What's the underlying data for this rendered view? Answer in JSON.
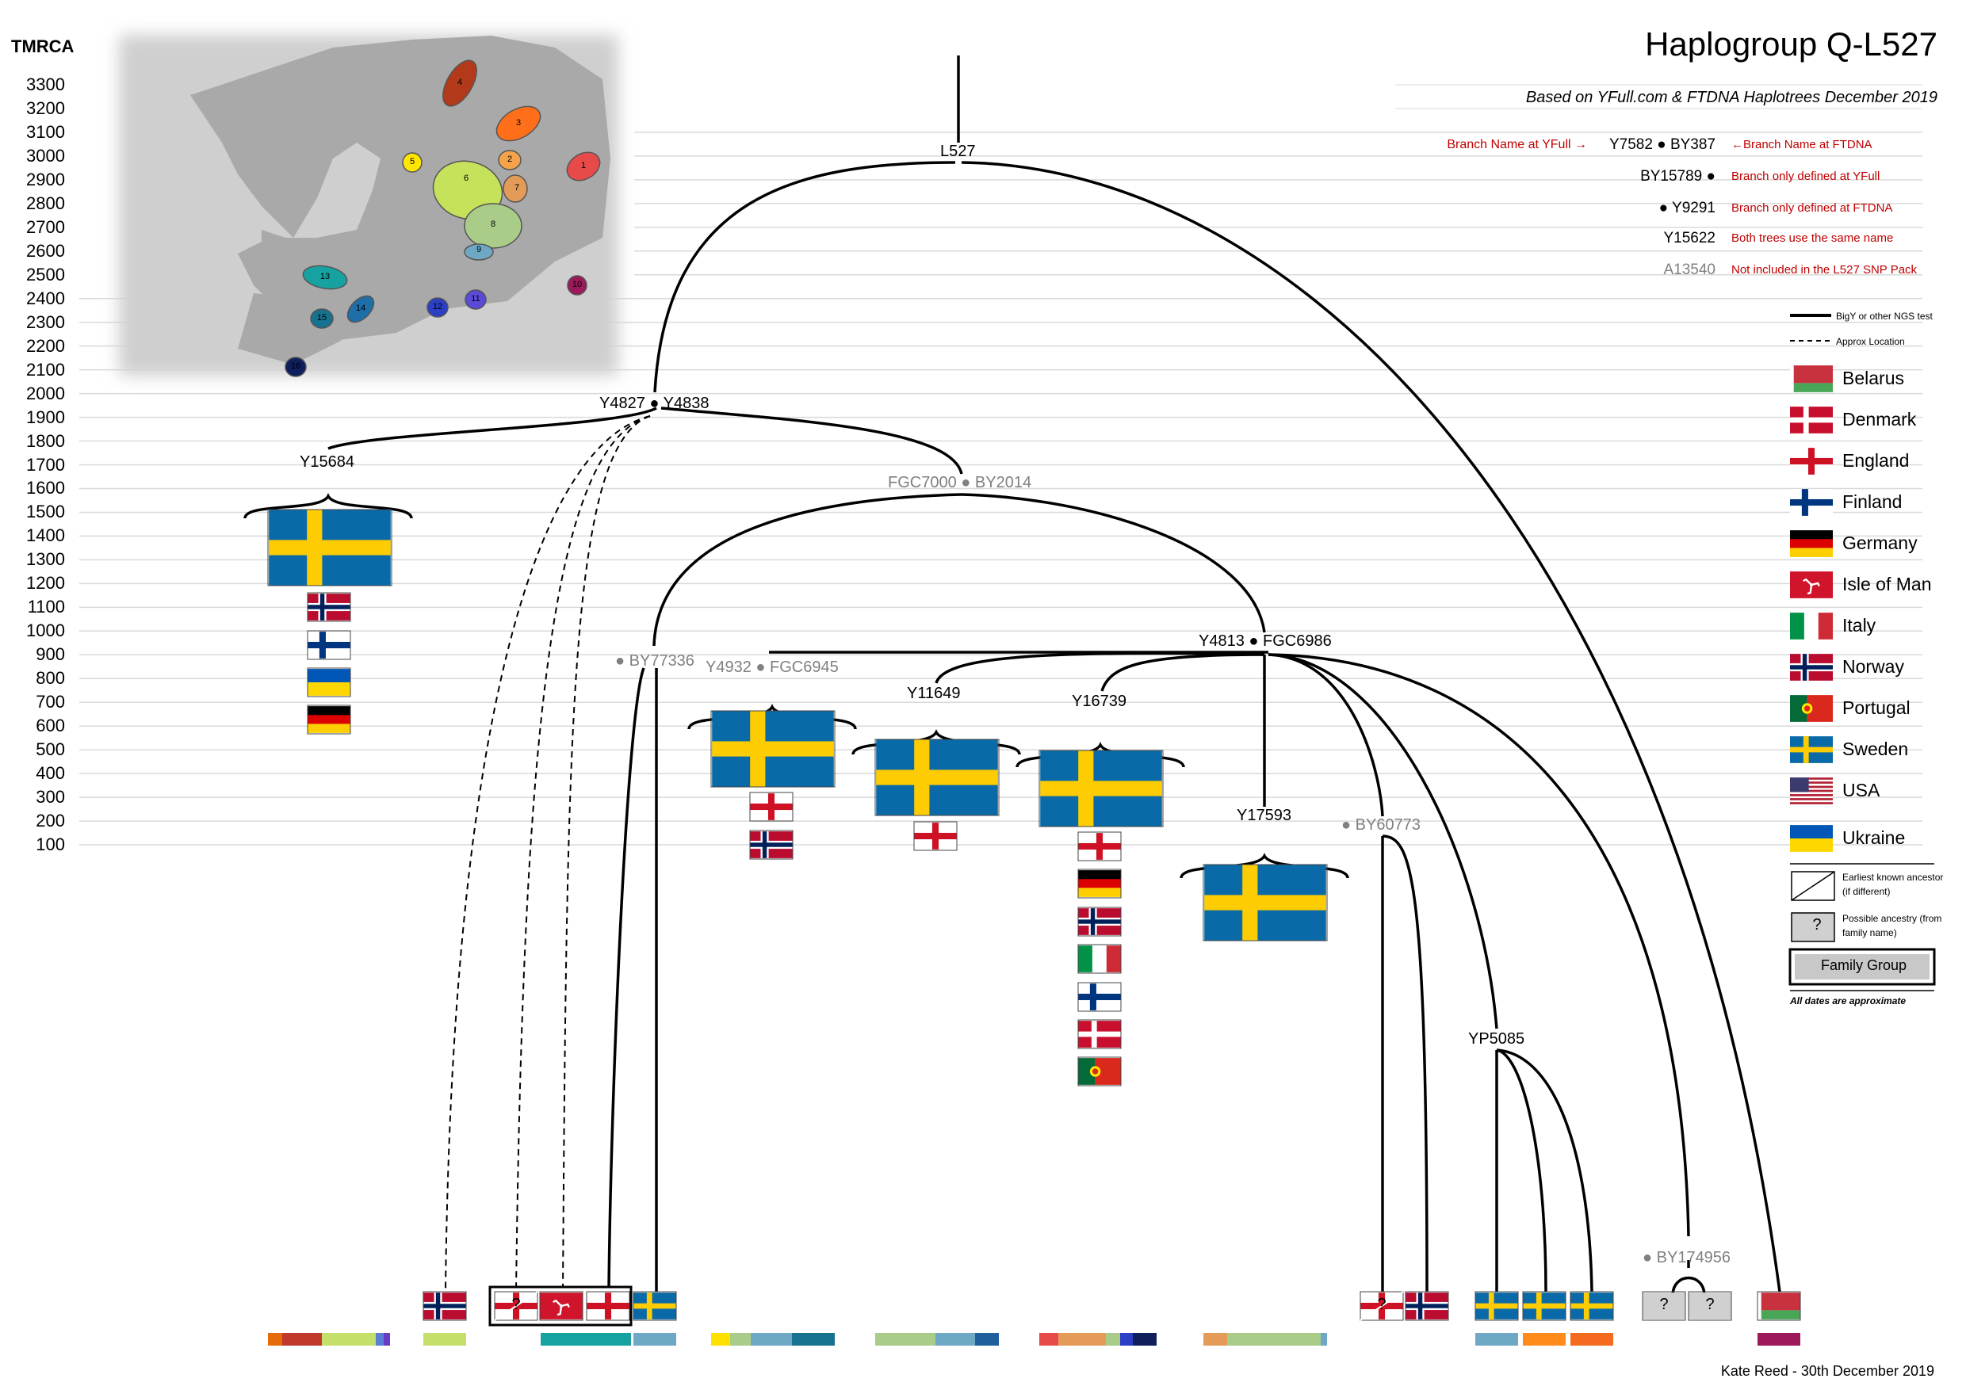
{
  "title": "Haplogroup Q-L527",
  "subtitle": "Based on YFull.com & FTDNA Haplotrees December 2019",
  "axis": {
    "label": "TMRCA",
    "ticks": [
      3300,
      3200,
      3100,
      3000,
      2900,
      2800,
      2700,
      2600,
      2500,
      2400,
      2300,
      2200,
      2100,
      2000,
      1900,
      1800,
      1700,
      1600,
      1500,
      1400,
      1300,
      1200,
      1100,
      1000,
      900,
      800,
      700,
      600,
      500,
      400,
      300,
      200,
      100
    ]
  },
  "nodes": {
    "l527": "L527",
    "y4827": "Y4827 ● Y4838",
    "y15684": "Y15684",
    "fgc7000": "FGC7000 ● BY2014",
    "by77336": "● BY77336",
    "y4932": "Y4932 ● FGC6945",
    "y4813": "Y4813 ● FGC6986",
    "y11649": "Y11649",
    "y16739": "Y16739",
    "y17593": "Y17593",
    "by60773": "● BY60773",
    "yp5085": "YP5085",
    "by174956": "● BY174956"
  },
  "key": {
    "rows": [
      {
        "left": "Branch Name at YFull →",
        "mid": "Y7582 ● BY387",
        "right": "←Branch Name at FTDNA"
      },
      {
        "left": "",
        "mid": "BY15789 ●",
        "right": "Branch only defined at YFull"
      },
      {
        "left": "",
        "mid": "● Y9291",
        "right": "Branch only defined at FTDNA"
      },
      {
        "left": "",
        "mid": "Y15622",
        "right": "Both trees use the same name"
      },
      {
        "left": "",
        "mid": "A13540",
        "right": "Not included in the L527 SNP Pack"
      }
    ]
  },
  "legend": {
    "solid_line": "BigY or other NGS test",
    "dashed_line": "Approx Location",
    "countries": [
      "Belarus",
      "Denmark",
      "England",
      "Finland",
      "Germany",
      "Isle of Man",
      "Italy",
      "Norway",
      "Portugal",
      "Sweden",
      "USA",
      "Ukraine"
    ],
    "earliest_ancestor": "Earliest known ancestor (if different)",
    "possible_ancestry": "Possible ancestry (from family name)",
    "question_mark": "?",
    "family_group": "Family Group",
    "dates_note": "All dates are approximate"
  },
  "map_regions": [
    "1",
    "2",
    "3",
    "4",
    "5",
    "6",
    "7",
    "8",
    "9",
    "10",
    "11",
    "12",
    "13",
    "14",
    "15",
    "16"
  ],
  "footer": "Kate Reed - 30th December 2019",
  "colors": {
    "sweden_blue": "#0a6aa8",
    "sweden_yellow": "#fecc02",
    "key_red": "#c00000",
    "line": "#000000",
    "grid": "#d9d9d9"
  }
}
